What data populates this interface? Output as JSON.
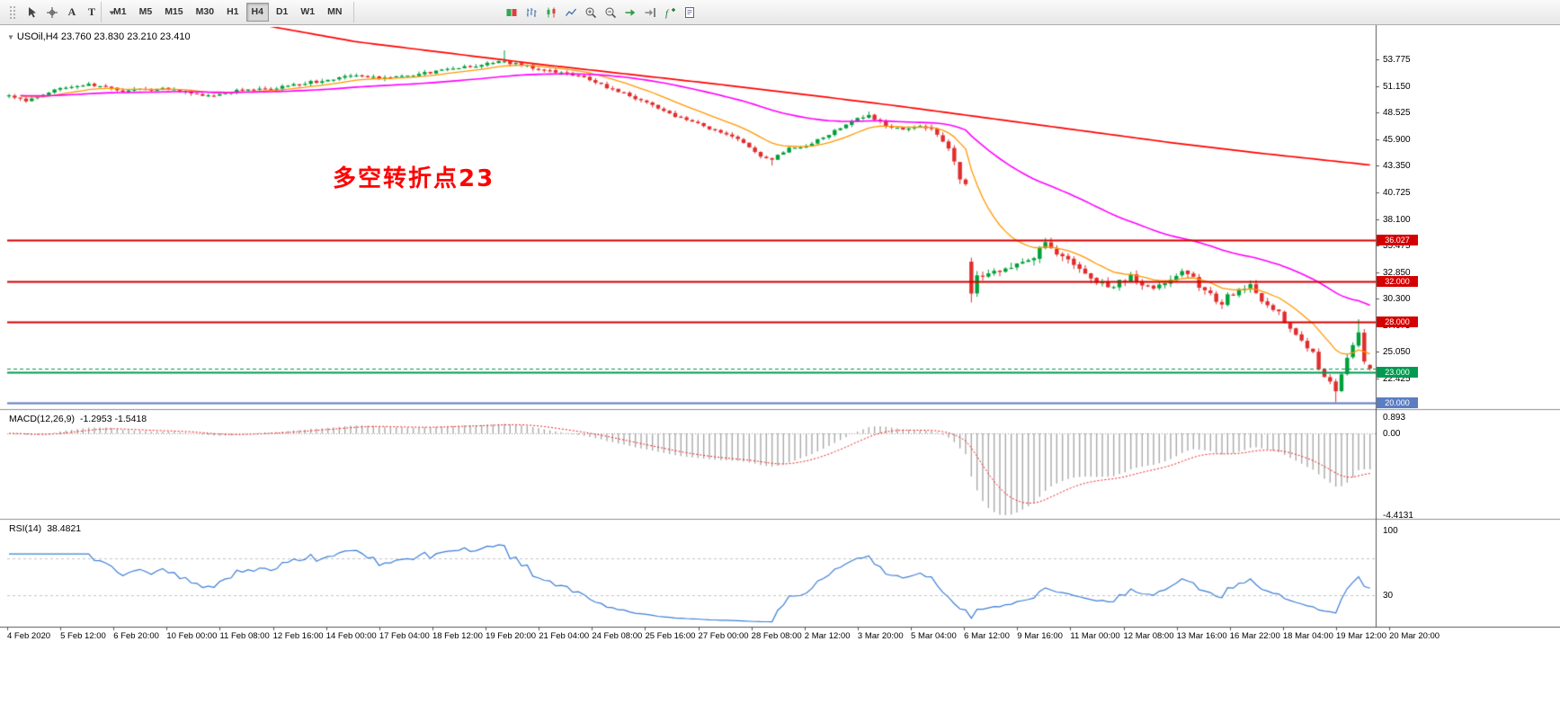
{
  "colors": {
    "candle_up": "#00a03a",
    "candle_down": "#e22c2c",
    "hline_red": "#d40000",
    "hline_green": "#009a50",
    "hline_blue": "#5b7dc2",
    "annotation_red": "#ff0000",
    "macd_hist": "#a9a9a9",
    "macd_signal": "#ee2222",
    "rsi_line": "#3d7fd6"
  },
  "toolbar": {
    "left_tools": [
      {
        "name": "toolbars-grip-icon"
      },
      {
        "name": "cursor-icon"
      },
      {
        "name": "crosshair-icon"
      },
      {
        "name": "text-annotation-icon",
        "label": "A"
      },
      {
        "name": "text-label-icon",
        "label": "T"
      },
      {
        "name": "shapes-dropdown-icon"
      }
    ],
    "timeframes": [
      {
        "label": "M1",
        "active": false
      },
      {
        "label": "M5",
        "active": false
      },
      {
        "label": "M15",
        "active": false
      },
      {
        "label": "M30",
        "active": false
      },
      {
        "label": "H1",
        "active": false
      },
      {
        "label": "H4",
        "active": true
      },
      {
        "label": "D1",
        "active": false
      },
      {
        "label": "W1",
        "active": false
      },
      {
        "label": "MN",
        "active": false
      }
    ],
    "chart_tools": [
      {
        "name": "new-order-icon"
      },
      {
        "name": "bar-chart-icon"
      },
      {
        "name": "candlestick-chart-icon"
      },
      {
        "name": "line-chart-icon"
      },
      {
        "name": "zoom-in-icon"
      },
      {
        "name": "zoom-out-icon"
      },
      {
        "name": "auto-scroll-icon"
      },
      {
        "name": "chart-shift-icon"
      },
      {
        "name": "indicators-icon"
      },
      {
        "name": "templates-icon"
      }
    ]
  },
  "chart_data": {
    "type": "candlestick",
    "title": "USOil,H4",
    "symbol_line": "USOil,H4 23.760 23.830 23.210 23.410",
    "ohlc_display": {
      "open": "23.760",
      "high": "23.830",
      "low": "23.210",
      "close": "23.410"
    },
    "annotation": {
      "text": "多空转折点23",
      "color": "#ff0000"
    },
    "y_axis": {
      "ticks": [
        "53.775",
        "51.150",
        "48.525",
        "45.900",
        "43.350",
        "40.725",
        "38.100",
        "35.475",
        "32.850",
        "30.300",
        "27.675",
        "25.050",
        "22.425"
      ],
      "range": [
        19.4,
        57.0
      ]
    },
    "x_axis": {
      "ticks": [
        "4 Feb 2020",
        "5 Feb 12:00",
        "6 Feb 20:00",
        "10 Feb 00:00",
        "11 Feb 08:00",
        "12 Feb 16:00",
        "14 Feb 00:00",
        "17 Feb 04:00",
        "18 Feb 12:00",
        "19 Feb 20:00",
        "21 Feb 04:00",
        "24 Feb 08:00",
        "25 Feb 16:00",
        "27 Feb 00:00",
        "28 Feb 08:00",
        "2 Mar 12:00",
        "3 Mar 20:00",
        "5 Mar 04:00",
        "6 Mar 12:00",
        "9 Mar 16:00",
        "11 Mar 00:00",
        "12 Mar 08:00",
        "13 Mar 16:00",
        "16 Mar 22:00",
        "18 Mar 04:00",
        "19 Mar 12:00",
        "20 Mar 20:00"
      ]
    },
    "horizontal_lines": [
      {
        "value": 36.027,
        "label": "36.027",
        "color": "#d40000",
        "width": 2,
        "tag": true
      },
      {
        "value": 32.0,
        "label": "32.000",
        "color": "#d40000",
        "width": 2,
        "tag": true
      },
      {
        "value": 28.0,
        "label": "28.000",
        "color": "#d40000",
        "width": 2,
        "tag": true
      },
      {
        "value": 23.0,
        "label": "23.000",
        "color": "#009a50",
        "width": 2,
        "tag": true
      },
      {
        "value": 20.0,
        "label": "20.000",
        "color": "#5b7dc2",
        "width": 2,
        "tag": true
      }
    ],
    "bid_line": {
      "value": 23.41,
      "color": "#009a50",
      "style": "dashed"
    },
    "moving_averages": [
      {
        "name": "ma-fast",
        "color": "#ff9800",
        "approx_period": 13,
        "method": "ema"
      },
      {
        "name": "ma-medium",
        "color": "#ff00ff",
        "approx_period": 55,
        "method": "ema"
      }
    ],
    "ma_slow_red": {
      "color": "#ff0000",
      "anchors": [
        [
          44,
          57.2
        ],
        [
          61,
          55.5
        ],
        [
          77,
          54.4
        ],
        [
          93,
          53.3
        ],
        [
          109,
          52.3
        ],
        [
          125,
          51.3
        ],
        [
          140,
          50.3
        ],
        [
          156,
          49.2
        ],
        [
          172,
          48.0
        ],
        [
          188,
          46.8
        ],
        [
          204,
          45.6
        ],
        [
          219,
          44.6
        ],
        [
          239,
          43.4
        ]
      ]
    },
    "indicators": {
      "macd": {
        "label": "MACD(12,26,9)",
        "display_values": "-1.2953 -1.5418",
        "params": [
          12,
          26,
          9
        ],
        "scale_min": -4.4131,
        "scale_ticks": [
          "0.893",
          "0.00",
          "-4.4131"
        ],
        "hist_color": "#a9a9a9",
        "signal_color": "#ee2222"
      },
      "rsi": {
        "label": "RSI(14)",
        "display_value": "38.4821",
        "period": 14,
        "levels": [
          70,
          30
        ],
        "scale_ticks": [
          "100",
          "30"
        ],
        "color": "#3d7fd6"
      }
    },
    "reconstruction": {
      "num_bars": 240,
      "seed": 12,
      "close_anchors": [
        [
          0,
          50.3
        ],
        [
          3,
          49.7
        ],
        [
          9,
          51.0
        ],
        [
          14,
          51.4
        ],
        [
          20,
          50.7
        ],
        [
          28,
          50.9
        ],
        [
          35,
          50.2
        ],
        [
          41,
          50.8
        ],
        [
          47,
          51.0
        ],
        [
          54,
          51.6
        ],
        [
          60,
          52.2
        ],
        [
          66,
          51.9
        ],
        [
          73,
          52.4
        ],
        [
          79,
          52.9
        ],
        [
          84,
          53.3
        ],
        [
          87,
          53.55
        ],
        [
          91,
          53.1
        ],
        [
          95,
          52.7
        ],
        [
          100,
          52.2
        ],
        [
          104,
          51.3
        ],
        [
          108,
          50.4
        ],
        [
          113,
          49.2
        ],
        [
          118,
          48.0
        ],
        [
          123,
          47.0
        ],
        [
          128,
          45.9
        ],
        [
          132,
          44.2
        ],
        [
          134,
          44.0
        ],
        [
          137,
          45.1
        ],
        [
          140,
          45.3
        ],
        [
          144,
          46.4
        ],
        [
          148,
          47.8
        ],
        [
          151,
          48.3
        ],
        [
          154,
          47.3
        ],
        [
          157,
          46.8
        ],
        [
          160,
          47.2
        ],
        [
          163,
          46.6
        ],
        [
          165,
          45.2
        ],
        [
          166,
          43.6
        ],
        [
          167,
          42.2
        ],
        [
          168,
          41.3
        ],
        [
          169,
          31.0
        ],
        [
          170,
          32.3
        ],
        [
          173,
          33.2
        ],
        [
          175,
          33.0
        ],
        [
          178,
          33.8
        ],
        [
          180,
          34.4
        ],
        [
          182,
          35.6
        ],
        [
          183,
          35.1
        ],
        [
          185,
          34.4
        ],
        [
          187,
          33.6
        ],
        [
          189,
          32.8
        ],
        [
          191,
          32.0
        ],
        [
          193,
          31.4
        ],
        [
          195,
          31.9
        ],
        [
          197,
          32.4
        ],
        [
          199,
          31.7
        ],
        [
          201,
          31.0
        ],
        [
          203,
          31.9
        ],
        [
          205,
          32.6
        ],
        [
          207,
          32.9
        ],
        [
          209,
          31.6
        ],
        [
          211,
          30.6
        ],
        [
          213,
          29.8
        ],
        [
          214,
          30.5
        ],
        [
          216,
          31.2
        ],
        [
          218,
          31.5
        ],
        [
          219,
          30.6
        ],
        [
          221,
          29.8
        ],
        [
          223,
          28.8
        ],
        [
          225,
          27.4
        ],
        [
          227,
          26.2
        ],
        [
          229,
          24.9
        ],
        [
          230,
          23.5
        ],
        [
          232,
          22.0
        ],
        [
          233,
          21.2
        ],
        [
          234,
          23.0
        ],
        [
          235,
          24.5
        ],
        [
          236,
          25.8
        ],
        [
          237,
          27.0
        ],
        [
          238,
          24.2
        ],
        [
          239,
          23.41
        ]
      ],
      "volatility_anchors": [
        [
          0,
          0.009
        ],
        [
          158,
          0.009
        ],
        [
          164,
          0.018
        ],
        [
          168,
          0.02
        ],
        [
          169,
          0.028
        ],
        [
          239,
          0.028
        ]
      ],
      "gaps": [
        {
          "index": 169,
          "open": 33.9
        }
      ],
      "extremes": [
        {
          "index": 87,
          "high": 54.66
        },
        {
          "index": 134,
          "low": 43.35
        },
        {
          "index": 151,
          "high": 48.65
        },
        {
          "index": 169,
          "high": 34.3,
          "low": 29.9
        },
        {
          "index": 182,
          "high": 36.03
        },
        {
          "index": 233,
          "low": 20.1
        },
        {
          "index": 237,
          "high": 28.25
        }
      ],
      "last_ohlc": {
        "open": 23.76,
        "high": 23.83,
        "low": 23.21,
        "close": 23.41
      }
    }
  }
}
